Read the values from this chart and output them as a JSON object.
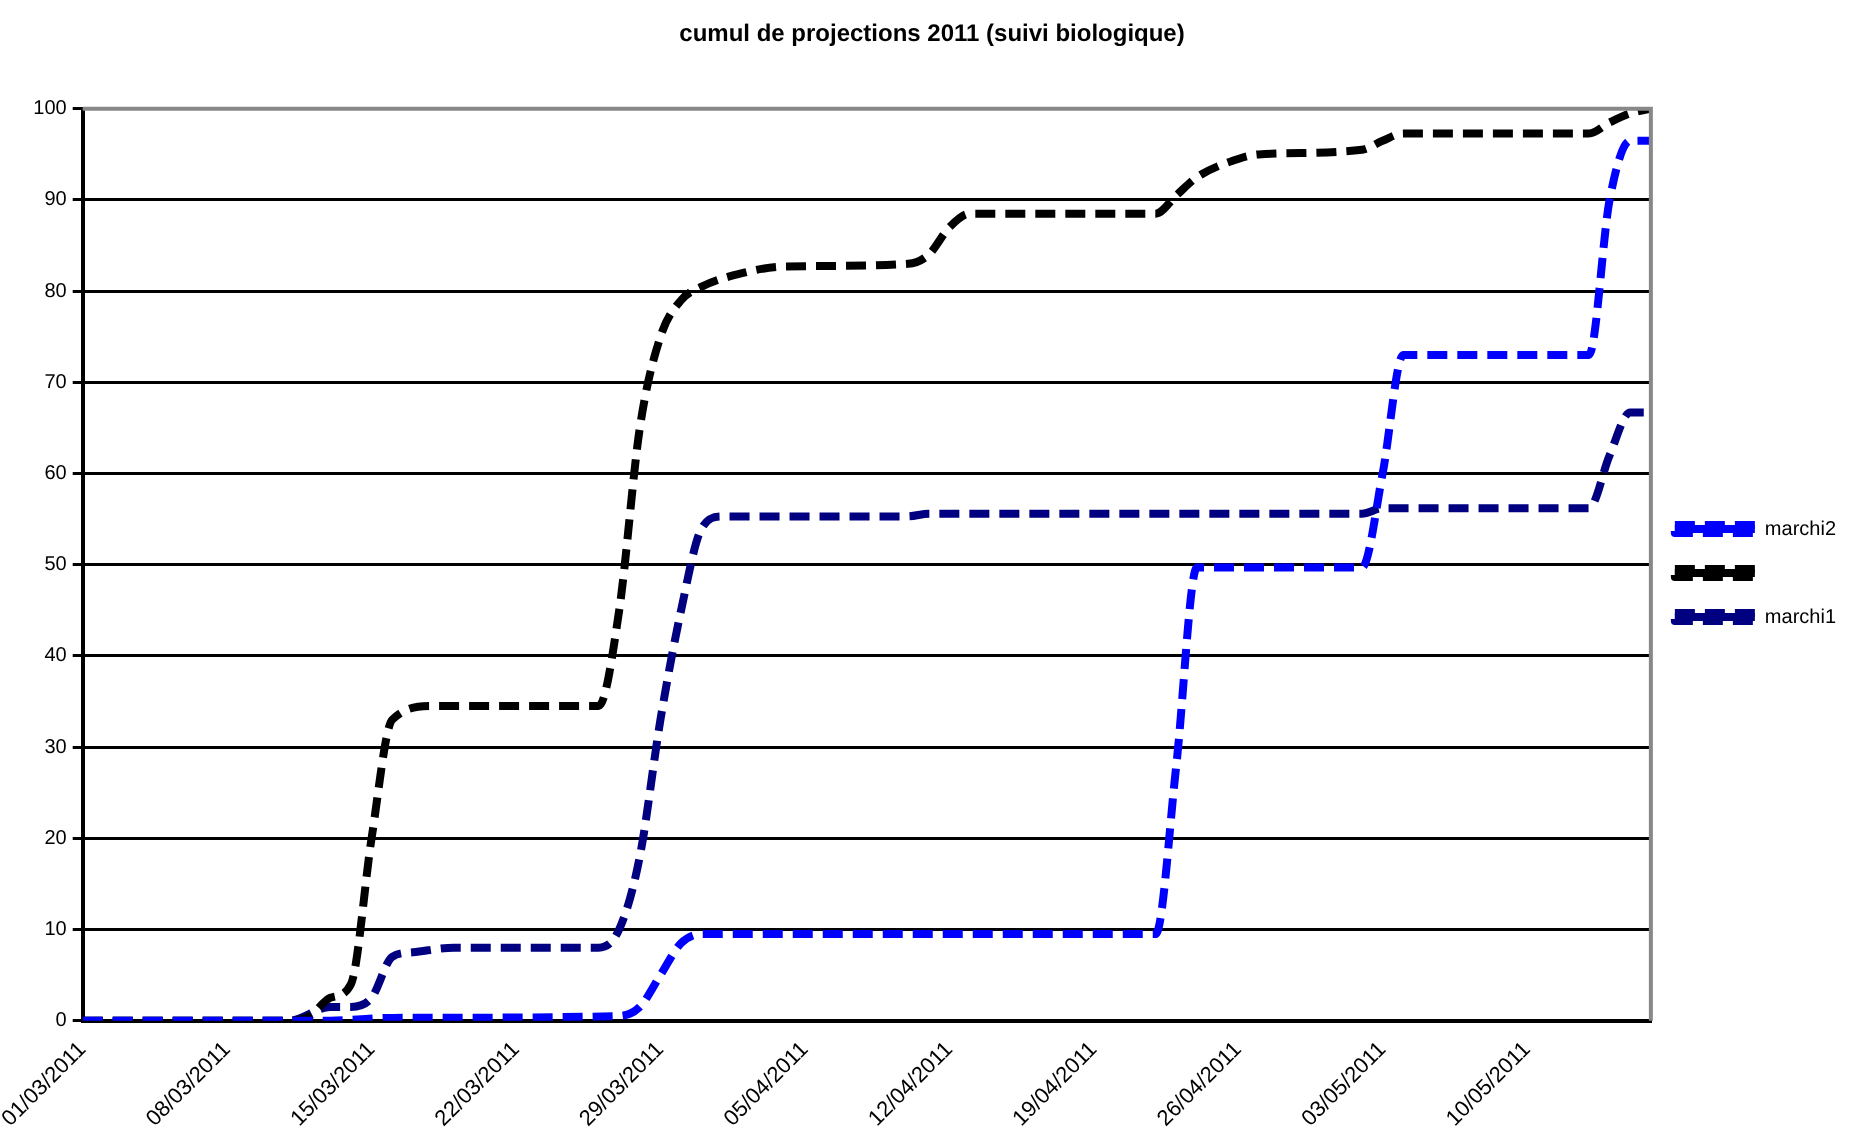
{
  "chart_data": {
    "type": "line",
    "title": "cumul de projections 2011 (suivi biologique)",
    "xlim": [
      "2011-03-01",
      "2011-05-16"
    ],
    "xticks": [
      {
        "value": "2011-03-01",
        "label": "01/03/2011"
      },
      {
        "value": "2011-03-08",
        "label": "08/03/2011"
      },
      {
        "value": "2011-03-15",
        "label": "15/03/2011"
      },
      {
        "value": "2011-03-22",
        "label": "22/03/2011"
      },
      {
        "value": "2011-03-29",
        "label": "29/03/2011"
      },
      {
        "value": "2011-04-05",
        "label": "05/04/2011"
      },
      {
        "value": "2011-04-12",
        "label": "12/04/2011"
      },
      {
        "value": "2011-04-19",
        "label": "19/04/2011"
      },
      {
        "value": "2011-04-26",
        "label": "26/04/2011"
      },
      {
        "value": "2011-05-03",
        "label": "03/05/2011"
      },
      {
        "value": "2011-05-10",
        "label": "10/05/2011"
      }
    ],
    "ylim": [
      0,
      100
    ],
    "yticks": [
      0,
      10,
      20,
      30,
      40,
      50,
      60,
      70,
      80,
      90,
      100
    ],
    "grid": "y",
    "legend": "right",
    "marker": "none",
    "line_style": "dashed",
    "series": [
      {
        "name": "marchi2",
        "color": "#0000ff",
        "x": [
          "2011-03-01",
          "2011-03-11",
          "2011-03-13",
          "2011-03-16",
          "2011-03-27",
          "2011-03-28",
          "2011-03-29",
          "2011-03-30",
          "2011-03-31",
          "2011-04-01",
          "2011-04-22",
          "2011-04-23",
          "2011-04-24",
          "2011-05-02",
          "2011-05-03",
          "2011-05-04",
          "2011-05-13",
          "2011-05-14",
          "2011-05-15",
          "2011-05-16"
        ],
        "values": [
          0,
          0,
          0,
          0.3,
          0.5,
          1.5,
          5,
          8.5,
          9.5,
          9.5,
          9.5,
          28,
          49.7,
          49.7,
          60,
          73,
          73,
          90,
          96.5,
          96.5
        ]
      },
      {
        "color": "#000000",
        "x": [
          "2011-03-01",
          "2011-03-11",
          "2011-03-12",
          "2011-03-13",
          "2011-03-14",
          "2011-03-15",
          "2011-03-16",
          "2011-03-18",
          "2011-03-26",
          "2011-03-27",
          "2011-03-28",
          "2011-03-29",
          "2011-03-30",
          "2011-03-31",
          "2011-04-02",
          "2011-04-04",
          "2011-04-10",
          "2011-04-11",
          "2011-04-12",
          "2011-04-13",
          "2011-04-22",
          "2011-04-23",
          "2011-04-24",
          "2011-04-26",
          "2011-04-27",
          "2011-05-02",
          "2011-05-03",
          "2011-05-04",
          "2011-05-13",
          "2011-05-14",
          "2011-05-15",
          "2011-05-16"
        ],
        "values": [
          0,
          0,
          0.5,
          2.5,
          4,
          20,
          33,
          34.5,
          34.5,
          45,
          65,
          75,
          79,
          80.5,
          82,
          82.7,
          83,
          84,
          87,
          88.5,
          88.5,
          90.5,
          92.5,
          94.5,
          95,
          95.5,
          96.5,
          97.3,
          97.3,
          98.5,
          99.5,
          100
        ]
      },
      {
        "name": "marchi1",
        "color": "#000080",
        "x": [
          "2011-03-01",
          "2011-03-11",
          "2011-03-13",
          "2011-03-14",
          "2011-03-15",
          "2011-03-16",
          "2011-03-17",
          "2011-03-19",
          "2011-03-26",
          "2011-03-27",
          "2011-03-28",
          "2011-03-29",
          "2011-03-30",
          "2011-03-31",
          "2011-04-01",
          "2011-04-10",
          "2011-04-11",
          "2011-05-02",
          "2011-05-03",
          "2011-05-13",
          "2011-05-14",
          "2011-05-15",
          "2011-05-16"
        ],
        "values": [
          0,
          0,
          1.5,
          1.5,
          2.5,
          7,
          7.5,
          8,
          8,
          10,
          18,
          33,
          45,
          54,
          55.3,
          55.3,
          55.6,
          55.6,
          56.2,
          56.2,
          62,
          66.7,
          66.7
        ]
      }
    ]
  }
}
